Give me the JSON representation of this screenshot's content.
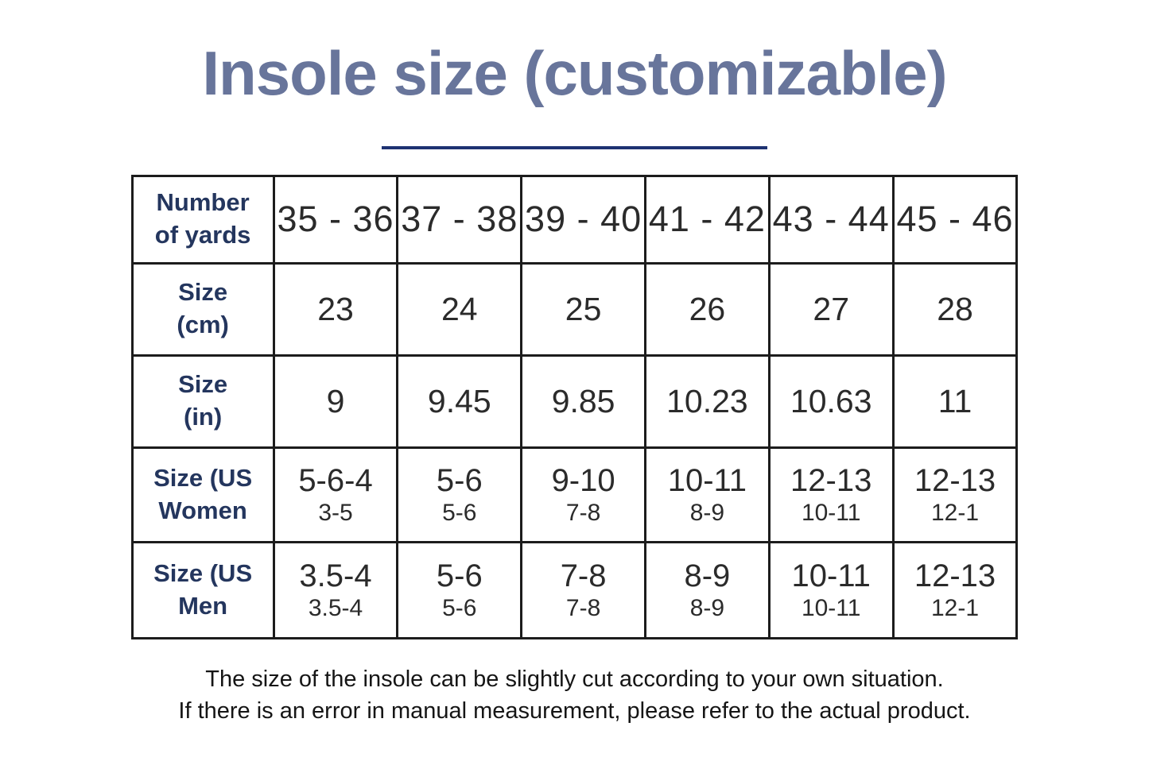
{
  "title": "Insole size (customizable)",
  "colors": {
    "title-text": "#68759b",
    "divider": "#1e3272",
    "table-border": "#1c1c1c",
    "row-label": "#24365e",
    "cell-text": "#2b2b2b",
    "footer-text": "#151515",
    "page-bg": "#ffffff"
  },
  "table": {
    "header": {
      "label": [
        "Number",
        "of yards"
      ],
      "columns": [
        "35 - 36",
        "37 - 38",
        "39 - 40",
        "41 - 42",
        "43 - 44",
        "45 - 46"
      ]
    },
    "rows": [
      {
        "label": [
          "Size",
          "(cm)"
        ],
        "values": [
          "23",
          "24",
          "25",
          "26",
          "27",
          "28"
        ]
      },
      {
        "label": [
          "Size",
          "(in)"
        ],
        "values": [
          "9",
          "9.45",
          "9.85",
          "10.23",
          "10.63",
          "11"
        ]
      },
      {
        "label": [
          "Size (US",
          "Women"
        ],
        "main": [
          "5-6-4",
          "5-6",
          "9-10",
          "10-11",
          "12-13",
          "12-13"
        ],
        "sub": [
          "3-5",
          "5-6",
          "7-8",
          "8-9",
          "10-11",
          "12-1"
        ]
      },
      {
        "label": [
          "Size (US",
          "Men"
        ],
        "main": [
          "3.5-4",
          "5-6",
          "7-8",
          "8-9",
          "10-11",
          "12-13"
        ],
        "sub": [
          "3.5-4",
          "5-6",
          "7-8",
          "8-9",
          "10-11",
          "12-1"
        ]
      }
    ]
  },
  "footer": {
    "line1": "The size of the insole can be slightly cut according to your own situation.",
    "line2": "If there is an error in manual measurement, please refer to the actual product."
  }
}
